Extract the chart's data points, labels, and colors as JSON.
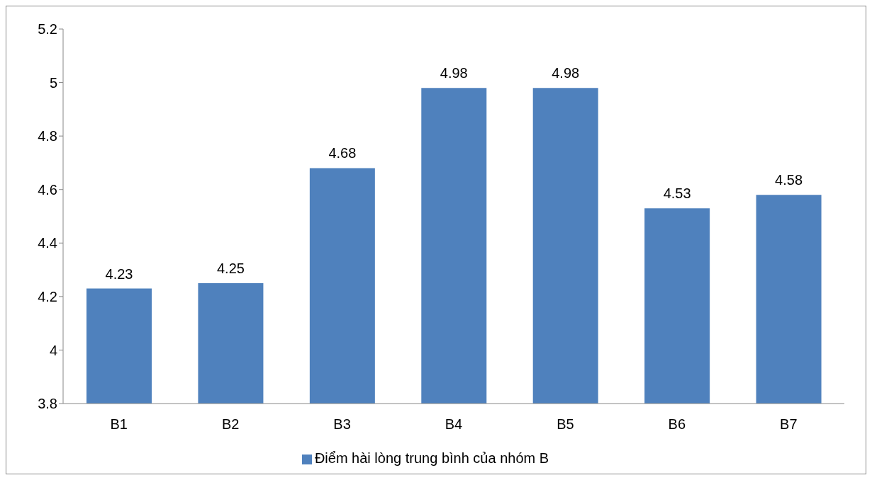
{
  "chart_data": {
    "type": "bar",
    "categories": [
      "B1",
      "B2",
      "B3",
      "B4",
      "B5",
      "B6",
      "B7"
    ],
    "series": [
      {
        "name": "Điểm hài lòng trung bình của nhóm B",
        "color": "#4f81bd",
        "values": [
          4.23,
          4.25,
          4.68,
          4.98,
          4.98,
          4.53,
          4.58
        ]
      }
    ],
    "ylim": [
      3.8,
      5.2
    ],
    "yticks": [
      3.8,
      4,
      4.2,
      4.4,
      4.6,
      4.8,
      5,
      5.2
    ],
    "data_labels": true,
    "grid": false,
    "legend": "bottom"
  }
}
